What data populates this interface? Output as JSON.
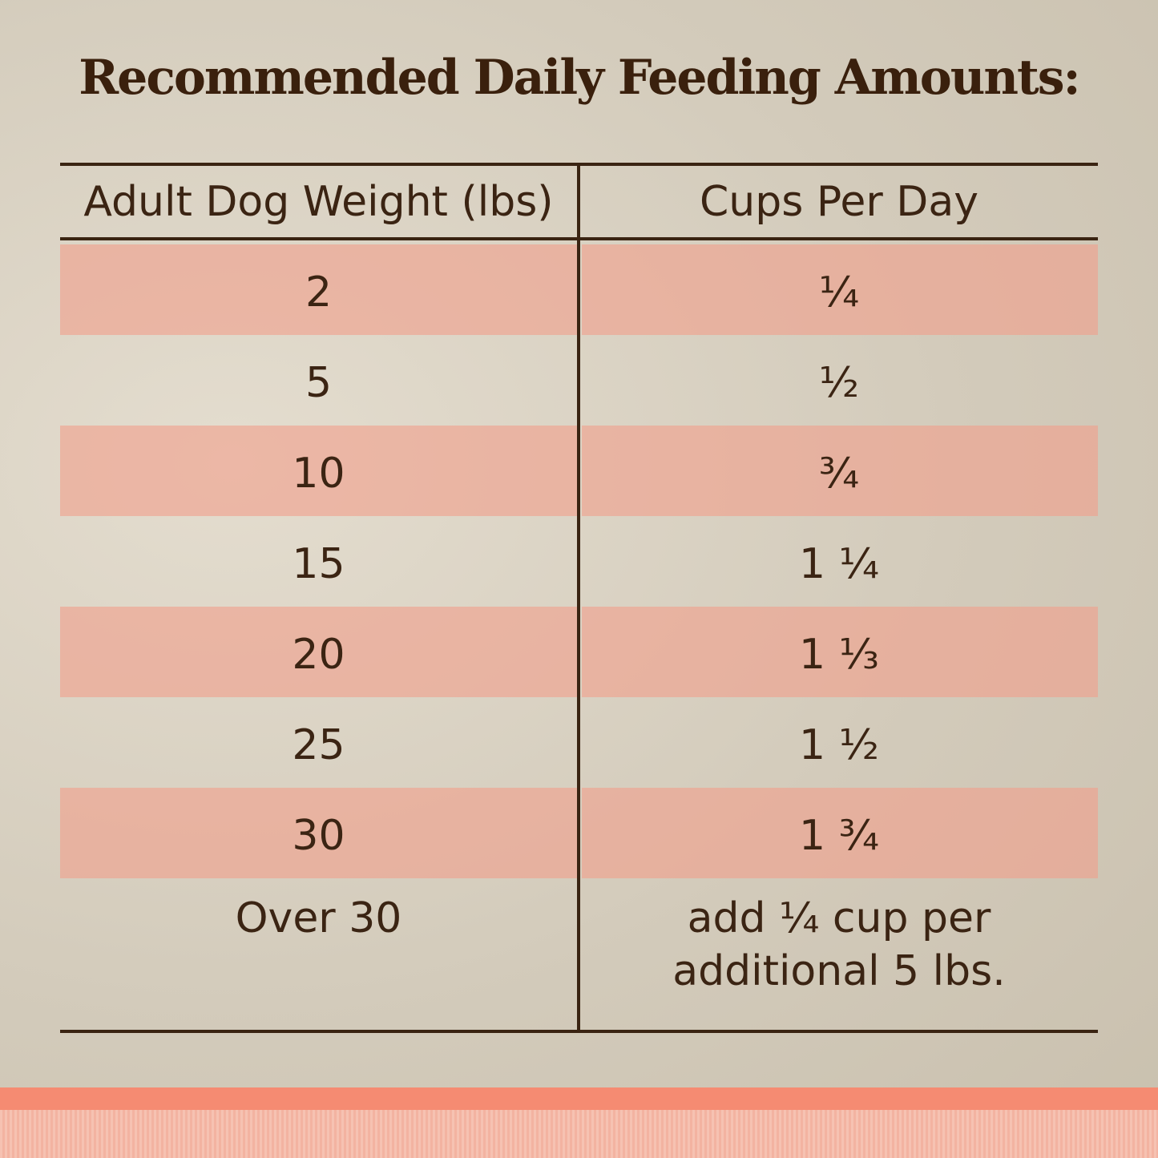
{
  "title": "Recommended Daily Feeding Amounts:",
  "table": {
    "header": [
      "Adult Dog Weight (lbs)",
      "Cups Per Day"
    ],
    "rows": [
      [
        "2",
        "¼"
      ],
      [
        "5",
        "½"
      ],
      [
        "10",
        "¾"
      ],
      [
        "15",
        "1 ¼"
      ],
      [
        "20",
        "1 ⅓"
      ],
      [
        "25",
        "1 ½"
      ],
      [
        "30",
        "1 ¾"
      ],
      [
        "Over 30",
        [
          "add ¼ cup per",
          "additional 5 lbs."
        ]
      ]
    ]
  }
}
